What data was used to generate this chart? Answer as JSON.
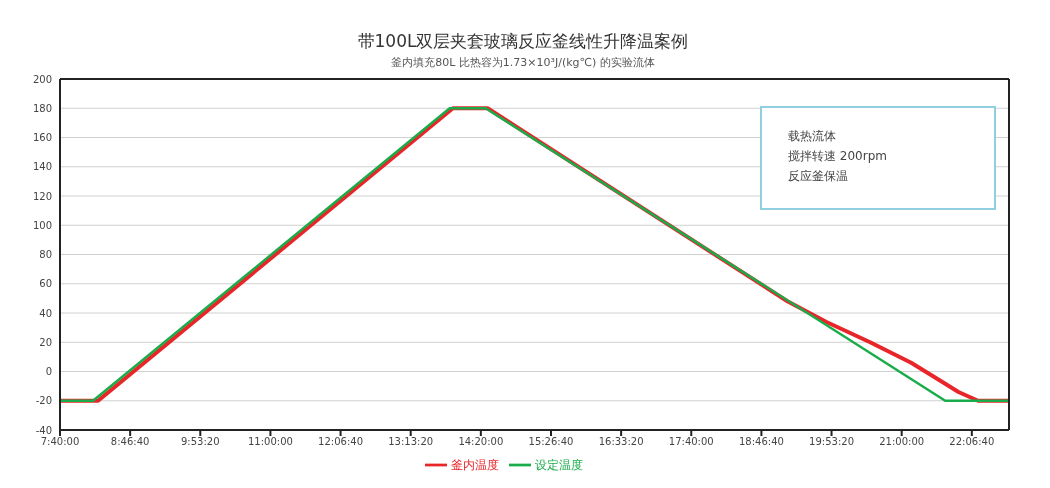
{
  "chart_data": {
    "type": "line",
    "title": "带100L双层夹套玻璃反应釜线性升降温案例",
    "subtitle": "釜内填充80L 比热容为1.73×10³J/(kg℃) 的实验流体",
    "annotations": [
      "载热流体",
      "搅拌转速 200rpm",
      "反应釜保温"
    ],
    "series": [
      {
        "name": "釜内温度",
        "color": "#e8262a",
        "x": [
          7.6667,
          8.27,
          13.89,
          14.44,
          19.19,
          19.8,
          20.5,
          21.15,
          21.6,
          21.9,
          22.21,
          22.7
        ],
        "values": [
          -20,
          -20,
          180,
          180,
          48,
          34,
          20,
          6,
          -6,
          -14,
          -20,
          -20
        ]
      },
      {
        "name": "设定温度",
        "color": "#1aab4a",
        "x": [
          7.6667,
          8.19,
          13.84,
          14.41,
          21.69,
          22.7
        ],
        "values": [
          -20,
          -20,
          180,
          180,
          -20,
          -20
        ]
      }
    ],
    "xlim": [
      7.6667,
      22.7
    ],
    "xticks": [
      {
        "value": 7.6667,
        "label": "7:40:00"
      },
      {
        "value": 8.7778,
        "label": "8:46:40"
      },
      {
        "value": 9.8889,
        "label": "9:53:20"
      },
      {
        "value": 11,
        "label": "11:00:00"
      },
      {
        "value": 12.1111,
        "label": "12:06:40"
      },
      {
        "value": 13.2222,
        "label": "13:13:20"
      },
      {
        "value": 14.3333,
        "label": "14:20:00"
      },
      {
        "value": 15.4444,
        "label": "15:26:40"
      },
      {
        "value": 16.5556,
        "label": "16:33:20"
      },
      {
        "value": 17.6667,
        "label": "17:40:00"
      },
      {
        "value": 18.7778,
        "label": "18:46:40"
      },
      {
        "value": 19.8889,
        "label": "19:53:20"
      },
      {
        "value": 21,
        "label": "21:00:00"
      },
      {
        "value": 22.1111,
        "label": "22:06:40"
      }
    ],
    "ylim": [
      -40,
      200
    ],
    "yticks": [
      -40,
      -20,
      0,
      20,
      40,
      60,
      80,
      100,
      120,
      140,
      160,
      180,
      200
    ],
    "grid": "y",
    "legend": "bottom",
    "marker": "none",
    "line_style": "solid"
  }
}
